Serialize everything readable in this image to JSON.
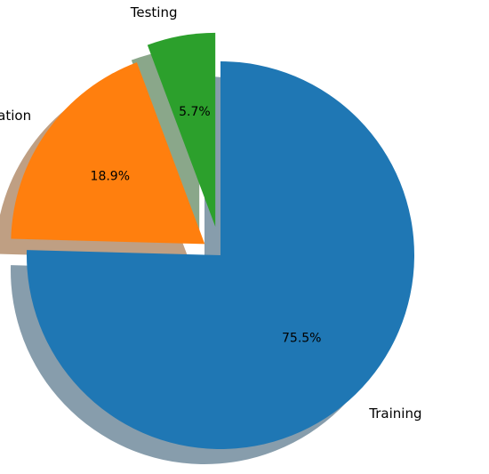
{
  "chart_data": {
    "type": "pie",
    "start_angle_deg": 90,
    "direction": "clockwise",
    "shadow": true,
    "slices": [
      {
        "label": "Training",
        "percent_label": "75.5%",
        "value": 75.5,
        "color": "#1f77b4",
        "explode": 0.0
      },
      {
        "label": "Validation",
        "percent_label": "18.9%",
        "value": 18.9,
        "color": "#ff7f0e",
        "explode": 0.1
      },
      {
        "label": "Testing",
        "percent_label": "5.7%",
        "value": 5.7,
        "color": "#2ca02c",
        "explode": 0.15
      }
    ]
  }
}
